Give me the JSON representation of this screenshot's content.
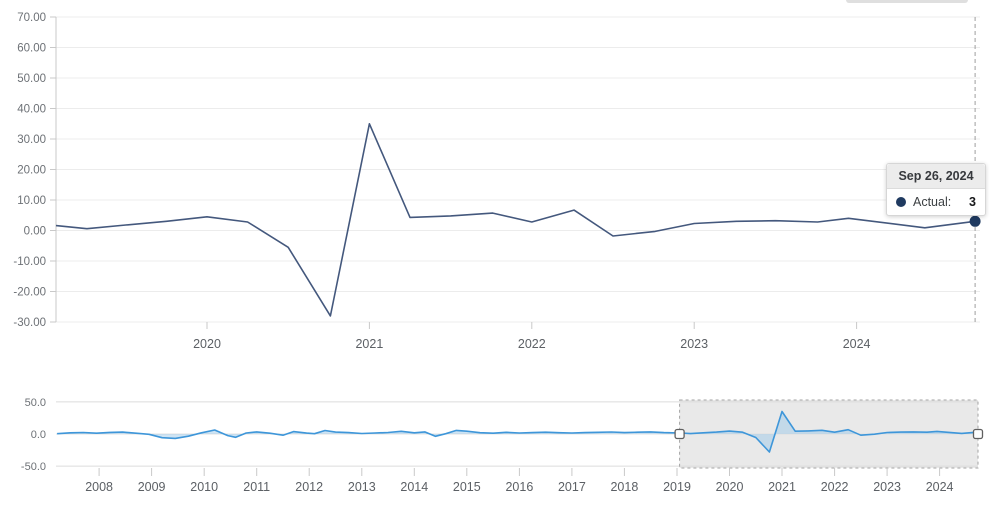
{
  "tooltip": {
    "date": "Sep 26, 2024",
    "series_label": "Actual:",
    "value": "3"
  },
  "colors": {
    "main_line": "#44587d",
    "marker": "#1f3a60",
    "nav_line": "#3e96d9",
    "nav_fill": "#9ec9ea",
    "grid": "#ececec",
    "axis": "#c9c9c9",
    "crosshair": "#9e9e9e",
    "selection_fill": "#e9e9e9",
    "selection_border": "#a3a3a3",
    "handle_fill": "#fdfdfd",
    "handle_border": "#5f5f5f",
    "y_label": "#6d7176",
    "x_label": "#5c6065"
  },
  "chart_data": [
    {
      "type": "line",
      "name": "main-chart",
      "title": "",
      "xlabel": "",
      "ylabel": "",
      "grid": true,
      "x_range": [
        2019.07,
        2024.76
      ],
      "ylim": [
        -30,
        70
      ],
      "y_ticks": [
        {
          "label": "70.00",
          "value": 70
        },
        {
          "label": "60.00",
          "value": 60
        },
        {
          "label": "50.00",
          "value": 50
        },
        {
          "label": "40.00",
          "value": 40
        },
        {
          "label": "30.00",
          "value": 30
        },
        {
          "label": "20.00",
          "value": 20
        },
        {
          "label": "10.00",
          "value": 10
        },
        {
          "label": "0.00",
          "value": 0
        },
        {
          "label": "-10.00",
          "value": -10
        },
        {
          "label": "-20.00",
          "value": -20
        },
        {
          "label": "-30.00",
          "value": -30
        }
      ],
      "x_ticks": [
        {
          "label": "2020",
          "value": 2020
        },
        {
          "label": "2021",
          "value": 2021
        },
        {
          "label": "2022",
          "value": 2022
        },
        {
          "label": "2023",
          "value": 2023
        },
        {
          "label": "2024",
          "value": 2024
        }
      ],
      "series": [
        {
          "name": "Actual",
          "points": [
            [
              2019.07,
              1.6
            ],
            [
              2019.26,
              0.6
            ],
            [
              2019.5,
              1.8
            ],
            [
              2019.75,
              3.0
            ],
            [
              2020.0,
              4.5
            ],
            [
              2020.25,
              2.8
            ],
            [
              2020.5,
              -5.5
            ],
            [
              2020.76,
              -28
            ],
            [
              2021.0,
              35
            ],
            [
              2021.25,
              4.3
            ],
            [
              2021.5,
              4.8
            ],
            [
              2021.76,
              5.7
            ],
            [
              2022.0,
              2.8
            ],
            [
              2022.26,
              6.7
            ],
            [
              2022.5,
              -1.8
            ],
            [
              2022.76,
              -0.3
            ],
            [
              2023.0,
              2.3
            ],
            [
              2023.26,
              3.0
            ],
            [
              2023.5,
              3.2
            ],
            [
              2023.76,
              2.8
            ],
            [
              2023.95,
              4.0
            ],
            [
              2024.42,
              0.9
            ],
            [
              2024.73,
              3.0
            ]
          ]
        }
      ],
      "crosshair_x": 2024.73,
      "last_point": [
        2024.73,
        3.0
      ]
    },
    {
      "type": "area",
      "name": "navigator",
      "title": "",
      "x_range": [
        2007.18,
        2024.73
      ],
      "ylim": [
        -53,
        53
      ],
      "y_ticks": [
        {
          "label": "50.0",
          "value": 50
        },
        {
          "label": "0.0",
          "value": 0
        },
        {
          "label": "-50.0",
          "value": -50
        }
      ],
      "x_ticks": [
        {
          "label": "2008",
          "value": 2008
        },
        {
          "label": "2009",
          "value": 2009
        },
        {
          "label": "2010",
          "value": 2010
        },
        {
          "label": "2011",
          "value": 2011
        },
        {
          "label": "2012",
          "value": 2012
        },
        {
          "label": "2013",
          "value": 2013
        },
        {
          "label": "2014",
          "value": 2014
        },
        {
          "label": "2015",
          "value": 2015
        },
        {
          "label": "2016",
          "value": 2016
        },
        {
          "label": "2017",
          "value": 2017
        },
        {
          "label": "2018",
          "value": 2018
        },
        {
          "label": "2019",
          "value": 2019
        },
        {
          "label": "2020",
          "value": 2020
        },
        {
          "label": "2021",
          "value": 2021
        },
        {
          "label": "2022",
          "value": 2022
        },
        {
          "label": "2023",
          "value": 2023
        },
        {
          "label": "2024",
          "value": 2024
        }
      ],
      "selection": {
        "start": 2019.05,
        "end": 2024.73
      },
      "series": [
        {
          "name": "Actual",
          "points": [
            [
              2007.2,
              0.5
            ],
            [
              2007.45,
              1.8
            ],
            [
              2007.7,
              2.3
            ],
            [
              2007.95,
              1.2
            ],
            [
              2008.2,
              2.5
            ],
            [
              2008.45,
              3.0
            ],
            [
              2008.7,
              1.3
            ],
            [
              2008.95,
              -0.5
            ],
            [
              2009.2,
              -5.8
            ],
            [
              2009.45,
              -6.8
            ],
            [
              2009.7,
              -3.5
            ],
            [
              2009.95,
              1.8
            ],
            [
              2010.2,
              6.2
            ],
            [
              2010.45,
              -2.5
            ],
            [
              2010.6,
              -5.2
            ],
            [
              2010.8,
              1.5
            ],
            [
              2011.0,
              3.2
            ],
            [
              2011.25,
              1.2
            ],
            [
              2011.5,
              -1.8
            ],
            [
              2011.7,
              3.8
            ],
            [
              2011.95,
              1.4
            ],
            [
              2012.1,
              0.5
            ],
            [
              2012.3,
              5.4
            ],
            [
              2012.5,
              3.0
            ],
            [
              2012.75,
              2.2
            ],
            [
              2013.0,
              0.8
            ],
            [
              2013.25,
              1.6
            ],
            [
              2013.5,
              2.3
            ],
            [
              2013.75,
              4.2
            ],
            [
              2014.0,
              1.8
            ],
            [
              2014.2,
              3.2
            ],
            [
              2014.4,
              -3.6
            ],
            [
              2014.6,
              0.5
            ],
            [
              2014.8,
              5.6
            ],
            [
              2015.0,
              4.4
            ],
            [
              2015.25,
              2.0
            ],
            [
              2015.5,
              1.2
            ],
            [
              2015.75,
              2.6
            ],
            [
              2016.0,
              1.5
            ],
            [
              2016.25,
              2.2
            ],
            [
              2016.5,
              2.8
            ],
            [
              2016.75,
              2.0
            ],
            [
              2017.0,
              1.6
            ],
            [
              2017.25,
              2.2
            ],
            [
              2017.5,
              2.7
            ],
            [
              2017.75,
              3.1
            ],
            [
              2018.0,
              2.2
            ],
            [
              2018.25,
              2.8
            ],
            [
              2018.5,
              3.2
            ],
            [
              2018.75,
              2.2
            ],
            [
              2019.07,
              1.6
            ],
            [
              2019.26,
              0.6
            ],
            [
              2019.5,
              1.8
            ],
            [
              2019.75,
              3.0
            ],
            [
              2020.0,
              4.5
            ],
            [
              2020.25,
              2.8
            ],
            [
              2020.5,
              -5.5
            ],
            [
              2020.76,
              -28
            ],
            [
              2021.0,
              35
            ],
            [
              2021.25,
              4.3
            ],
            [
              2021.5,
              4.8
            ],
            [
              2021.76,
              5.7
            ],
            [
              2022.0,
              2.8
            ],
            [
              2022.26,
              6.7
            ],
            [
              2022.5,
              -1.8
            ],
            [
              2022.76,
              -0.3
            ],
            [
              2023.0,
              2.3
            ],
            [
              2023.26,
              3.0
            ],
            [
              2023.5,
              3.2
            ],
            [
              2023.76,
              2.8
            ],
            [
              2023.95,
              4.0
            ],
            [
              2024.42,
              0.9
            ],
            [
              2024.73,
              3.0
            ]
          ]
        }
      ]
    }
  ]
}
